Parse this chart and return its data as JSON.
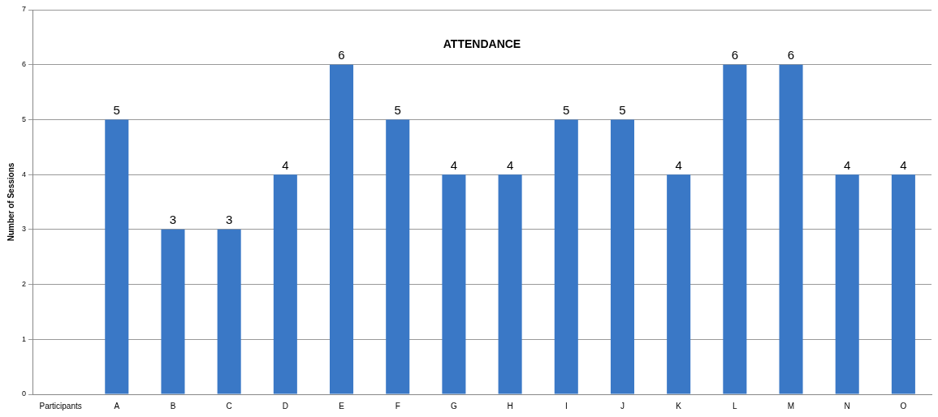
{
  "chart_data": {
    "type": "bar",
    "title": "ATTENDANCE",
    "ylabel": "Number of Sessions",
    "categories": [
      "Participants",
      "A",
      "B",
      "C",
      "D",
      "E",
      "F",
      "G",
      "H",
      "I",
      "J",
      "K",
      "L",
      "M",
      "N",
      "O"
    ],
    "values": [
      null,
      5,
      3,
      3,
      4,
      6,
      5,
      4,
      4,
      5,
      5,
      4,
      6,
      6,
      4,
      4
    ],
    "color": "#3a78c6",
    "ylim": [
      0,
      7
    ],
    "yticks": [
      0,
      1,
      2,
      3,
      4,
      5,
      6,
      7
    ],
    "grid": "y",
    "legend": false,
    "data_labels": true
  }
}
